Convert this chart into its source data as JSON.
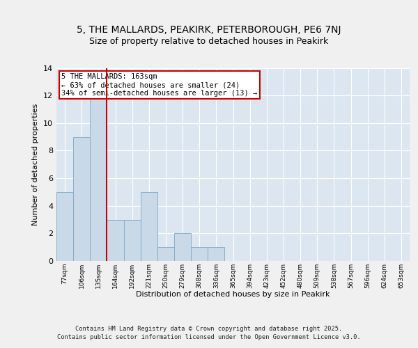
{
  "title1": "5, THE MALLARDS, PEAKIRK, PETERBOROUGH, PE6 7NJ",
  "title2": "Size of property relative to detached houses in Peakirk",
  "xlabel": "Distribution of detached houses by size in Peakirk",
  "ylabel": "Number of detached properties",
  "bin_labels": [
    "77sqm",
    "106sqm",
    "135sqm",
    "164sqm",
    "192sqm",
    "221sqm",
    "250sqm",
    "279sqm",
    "308sqm",
    "336sqm",
    "365sqm",
    "394sqm",
    "423sqm",
    "452sqm",
    "480sqm",
    "509sqm",
    "538sqm",
    "567sqm",
    "596sqm",
    "624sqm",
    "653sqm"
  ],
  "bar_heights": [
    5,
    9,
    12,
    3,
    3,
    5,
    1,
    2,
    1,
    1,
    0,
    0,
    0,
    0,
    0,
    0,
    0,
    0,
    0,
    0,
    0
  ],
  "bar_color": "#c9d9e8",
  "bar_edgecolor": "#7aaac8",
  "background_color": "#dce6f0",
  "grid_color": "#ffffff",
  "fig_background": "#f0f0f0",
  "red_line_x": 3,
  "annotation_text": "5 THE MALLARDS: 163sqm\n← 63% of detached houses are smaller (24)\n34% of semi-detached houses are larger (13) →",
  "annotation_box_color": "#ffffff",
  "annotation_box_edgecolor": "#cc0000",
  "ylim": [
    0,
    14
  ],
  "yticks": [
    0,
    2,
    4,
    6,
    8,
    10,
    12,
    14
  ],
  "footer_line1": "Contains HM Land Registry data © Crown copyright and database right 2025.",
  "footer_line2": "Contains public sector information licensed under the Open Government Licence v3.0.",
  "red_line_color": "#cc0000",
  "title_fontsize": 10,
  "subtitle_fontsize": 9,
  "annot_fontsize": 7.5
}
